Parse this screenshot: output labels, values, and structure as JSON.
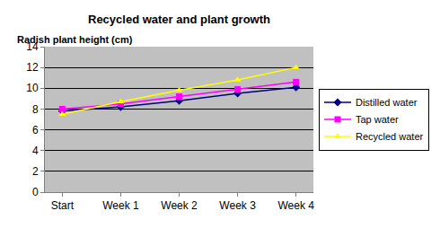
{
  "chart_data": {
    "type": "line",
    "title": "Recycled water and plant growth",
    "y_label": "Radish plant height (cm)",
    "categories": [
      "Start",
      "Week 1",
      "Week 2",
      "Week 3",
      "Week 4"
    ],
    "series": [
      {
        "name": "Distilled water",
        "color": "#000080",
        "marker": "diamond",
        "line_style": "solid",
        "values": [
          7.8,
          8.2,
          8.8,
          9.5,
          10.1
        ]
      },
      {
        "name": "Tap water",
        "color": "#ff00ff",
        "marker": "square",
        "line_style": "solid",
        "values": [
          8.0,
          8.5,
          9.2,
          9.9,
          10.6
        ]
      },
      {
        "name": "Recycled water",
        "color": "#ffff00",
        "marker": "triangle-up",
        "line_style": "solid",
        "values": [
          7.5,
          8.7,
          9.8,
          10.8,
          12.0
        ]
      }
    ],
    "ylim": [
      0,
      14
    ],
    "yticks": [
      0,
      2,
      4,
      6,
      8,
      10,
      12,
      14
    ],
    "grid": true,
    "legend": "right"
  }
}
